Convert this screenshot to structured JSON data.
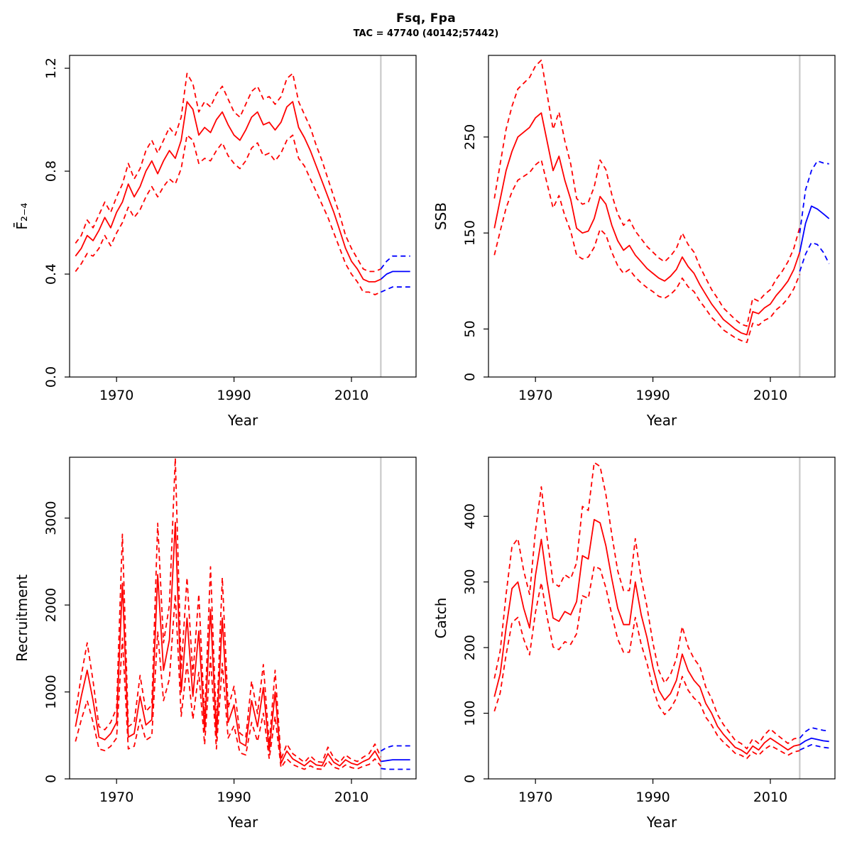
{
  "header": {
    "title": "Fsq, Fpa",
    "subtitle": "TAC = 47740 (40142;57442)"
  },
  "palette": {
    "history": "#ff0000",
    "forecast": "#0000ff",
    "vline": "#c9c9c9",
    "axis": "#000000"
  },
  "chart_data": [
    {
      "name": "fishing-mortality",
      "type": "line",
      "xlabel": "Year",
      "ylabel": "F̄₂₋₄",
      "xlim": [
        1962,
        2021
      ],
      "ylim": [
        0,
        1.25
      ],
      "xticks": [
        1970,
        1990,
        2010
      ],
      "yticks": [
        0,
        0.4,
        0.8,
        1.2
      ],
      "ytick_labels": [
        "0.0",
        "0.4",
        "0.8",
        "1.2"
      ],
      "vline": 2015,
      "years": [
        1963,
        1964,
        1965,
        1966,
        1967,
        1968,
        1969,
        1970,
        1971,
        1972,
        1973,
        1974,
        1975,
        1976,
        1977,
        1978,
        1979,
        1980,
        1981,
        1982,
        1983,
        1984,
        1985,
        1986,
        1987,
        1988,
        1989,
        1990,
        1991,
        1992,
        1993,
        1994,
        1995,
        1996,
        1997,
        1998,
        1999,
        2000,
        2001,
        2002,
        2003,
        2004,
        2005,
        2006,
        2007,
        2008,
        2009,
        2010,
        2011,
        2012,
        2013,
        2014,
        2015
      ],
      "median": [
        0.47,
        0.5,
        0.55,
        0.53,
        0.57,
        0.62,
        0.58,
        0.64,
        0.68,
        0.75,
        0.7,
        0.74,
        0.8,
        0.84,
        0.79,
        0.84,
        0.88,
        0.85,
        0.92,
        1.07,
        1.04,
        0.94,
        0.97,
        0.95,
        1.0,
        1.03,
        0.98,
        0.94,
        0.92,
        0.96,
        1.01,
        1.03,
        0.98,
        0.99,
        0.96,
        0.99,
        1.05,
        1.07,
        0.97,
        0.93,
        0.88,
        0.82,
        0.76,
        0.7,
        0.64,
        0.57,
        0.5,
        0.45,
        0.42,
        0.38,
        0.37,
        0.37,
        0.38
      ],
      "lower": [
        0.41,
        0.44,
        0.48,
        0.47,
        0.5,
        0.55,
        0.51,
        0.56,
        0.6,
        0.66,
        0.62,
        0.65,
        0.7,
        0.74,
        0.7,
        0.74,
        0.77,
        0.75,
        0.81,
        0.94,
        0.92,
        0.83,
        0.85,
        0.84,
        0.88,
        0.91,
        0.86,
        0.83,
        0.81,
        0.84,
        0.89,
        0.91,
        0.86,
        0.87,
        0.84,
        0.87,
        0.92,
        0.94,
        0.85,
        0.82,
        0.77,
        0.72,
        0.67,
        0.62,
        0.56,
        0.5,
        0.44,
        0.4,
        0.37,
        0.33,
        0.33,
        0.32,
        0.33
      ],
      "upper": [
        0.52,
        0.55,
        0.61,
        0.58,
        0.63,
        0.68,
        0.64,
        0.7,
        0.75,
        0.83,
        0.77,
        0.81,
        0.88,
        0.92,
        0.87,
        0.92,
        0.97,
        0.94,
        1.01,
        1.18,
        1.14,
        1.03,
        1.07,
        1.05,
        1.1,
        1.13,
        1.08,
        1.03,
        1.01,
        1.06,
        1.11,
        1.13,
        1.08,
        1.09,
        1.06,
        1.09,
        1.16,
        1.18,
        1.07,
        1.02,
        0.97,
        0.9,
        0.84,
        0.77,
        0.7,
        0.63,
        0.55,
        0.5,
        0.46,
        0.42,
        0.41,
        0.41,
        0.42
      ],
      "forecast": {
        "years": [
          2015,
          2016,
          2017,
          2018,
          2019,
          2020
        ],
        "median": [
          0.38,
          0.4,
          0.41,
          0.41,
          0.41,
          0.41
        ],
        "lower": [
          0.33,
          0.34,
          0.35,
          0.35,
          0.35,
          0.35
        ],
        "upper": [
          0.42,
          0.45,
          0.47,
          0.47,
          0.47,
          0.47
        ]
      }
    },
    {
      "name": "ssb",
      "type": "line",
      "xlabel": "Year",
      "ylabel": "SSB",
      "xlim": [
        1962,
        2021
      ],
      "ylim": [
        0,
        335
      ],
      "xticks": [
        1970,
        1990,
        2010
      ],
      "yticks": [
        0,
        50,
        150,
        250
      ],
      "ytick_labels": [
        "0",
        "50",
        "150",
        "250"
      ],
      "vline": 2015,
      "years": [
        1963,
        1964,
        1965,
        1966,
        1967,
        1968,
        1969,
        1970,
        1971,
        1972,
        1973,
        1974,
        1975,
        1976,
        1977,
        1978,
        1979,
        1980,
        1981,
        1982,
        1983,
        1984,
        1985,
        1986,
        1987,
        1988,
        1989,
        1990,
        1991,
        1992,
        1993,
        1994,
        1995,
        1996,
        1997,
        1998,
        1999,
        2000,
        2001,
        2002,
        2003,
        2004,
        2005,
        2006,
        2007,
        2008,
        2009,
        2010,
        2011,
        2012,
        2013,
        2014,
        2015
      ],
      "median": [
        155,
        185,
        215,
        235,
        250,
        255,
        260,
        270,
        275,
        245,
        215,
        230,
        205,
        185,
        155,
        150,
        152,
        165,
        188,
        180,
        158,
        142,
        132,
        137,
        127,
        120,
        113,
        108,
        103,
        100,
        105,
        112,
        125,
        115,
        108,
        96,
        86,
        76,
        68,
        60,
        55,
        50,
        46,
        44,
        68,
        66,
        72,
        76,
        85,
        92,
        100,
        112,
        130
      ],
      "lower": [
        127,
        152,
        176,
        193,
        205,
        209,
        213,
        221,
        226,
        201,
        176,
        189,
        168,
        152,
        127,
        123,
        125,
        135,
        154,
        148,
        130,
        116,
        108,
        112,
        104,
        98,
        93,
        89,
        84,
        82,
        86,
        92,
        103,
        94,
        89,
        79,
        71,
        62,
        56,
        49,
        45,
        41,
        38,
        36,
        56,
        54,
        59,
        62,
        70,
        75,
        82,
        92,
        107
      ],
      "upper": [
        186,
        222,
        258,
        282,
        300,
        306,
        312,
        324,
        330,
        294,
        258,
        276,
        246,
        222,
        186,
        180,
        182,
        198,
        226,
        216,
        190,
        170,
        158,
        164,
        152,
        144,
        136,
        130,
        124,
        120,
        126,
        134,
        150,
        138,
        130,
        115,
        103,
        91,
        82,
        72,
        66,
        60,
        55,
        53,
        82,
        79,
        86,
        91,
        102,
        110,
        120,
        134,
        156
      ],
      "forecast": {
        "years": [
          2015,
          2016,
          2017,
          2018,
          2019,
          2020
        ],
        "median": [
          130,
          160,
          178,
          175,
          170,
          165
        ],
        "lower": [
          110,
          128,
          140,
          138,
          130,
          118
        ],
        "upper": [
          150,
          195,
          215,
          225,
          223,
          222
        ]
      }
    },
    {
      "name": "recruitment",
      "type": "line",
      "xlabel": "Year",
      "ylabel": "Recruitment",
      "xlim": [
        1962,
        2021
      ],
      "ylim": [
        0,
        3700
      ],
      "xticks": [
        1970,
        1990,
        2010
      ],
      "yticks": [
        0,
        1000,
        2000,
        3000
      ],
      "ytick_labels": [
        "0",
        "1000",
        "2000",
        "3000"
      ],
      "vline": 2015,
      "years": [
        1963,
        1964,
        1965,
        1966,
        1967,
        1968,
        1969,
        1970,
        1971,
        1972,
        1973,
        1974,
        1975,
        1976,
        1977,
        1978,
        1979,
        1980,
        1981,
        1982,
        1983,
        1984,
        1985,
        1986,
        1987,
        1988,
        1989,
        1990,
        1991,
        1992,
        1993,
        1994,
        1995,
        1996,
        1997,
        1998,
        1999,
        2000,
        2001,
        2002,
        2003,
        2004,
        2005,
        2006,
        2007,
        2008,
        2009,
        2010,
        2011,
        2012,
        2013,
        2014,
        2015
      ],
      "median": [
        600,
        950,
        1250,
        900,
        480,
        450,
        520,
        650,
        2250,
        480,
        520,
        950,
        620,
        680,
        2350,
        1250,
        1600,
        2950,
        1000,
        1850,
        950,
        1700,
        550,
        1950,
        480,
        1850,
        650,
        850,
        420,
        380,
        900,
        600,
        1050,
        320,
        1000,
        180,
        320,
        230,
        190,
        150,
        210,
        160,
        150,
        290,
        190,
        150,
        220,
        180,
        160,
        200,
        230,
        320,
        200
      ],
      "lower": [
        430,
        680,
        900,
        650,
        345,
        325,
        375,
        470,
        1620,
        345,
        375,
        685,
        445,
        490,
        1690,
        900,
        1150,
        2125,
        720,
        1330,
        685,
        1225,
        395,
        1405,
        345,
        1330,
        470,
        610,
        300,
        275,
        650,
        430,
        755,
        230,
        720,
        130,
        230,
        165,
        135,
        110,
        150,
        115,
        110,
        210,
        135,
        110,
        160,
        130,
        115,
        145,
        165,
        230,
        145
      ],
      "upper": [
        750,
        1190,
        1565,
        1125,
        600,
        565,
        650,
        815,
        2815,
        600,
        650,
        1190,
        775,
        850,
        2940,
        1565,
        2000,
        3690,
        1250,
        2315,
        1190,
        2125,
        690,
        2440,
        600,
        2315,
        815,
        1065,
        525,
        475,
        1125,
        750,
        1315,
        400,
        1250,
        225,
        400,
        290,
        240,
        190,
        265,
        200,
        190,
        365,
        240,
        190,
        275,
        225,
        200,
        250,
        290,
        400,
        250
      ],
      "forecast": {
        "years": [
          2015,
          2016,
          2017,
          2018,
          2019,
          2020
        ],
        "median": [
          200,
          210,
          220,
          220,
          220,
          220
        ],
        "lower": [
          120,
          110,
          110,
          110,
          110,
          110
        ],
        "upper": [
          320,
          360,
          380,
          380,
          380,
          380
        ]
      }
    },
    {
      "name": "catch",
      "type": "line",
      "xlabel": "Year",
      "ylabel": "Catch",
      "xlim": [
        1962,
        2021
      ],
      "ylim": [
        0,
        490
      ],
      "xticks": [
        1970,
        1990,
        2010
      ],
      "yticks": [
        0,
        100,
        200,
        300,
        400
      ],
      "ytick_labels": [
        "0",
        "100",
        "200",
        "300",
        "400"
      ],
      "vline": 2015,
      "years": [
        1963,
        1964,
        1965,
        1966,
        1967,
        1968,
        1969,
        1970,
        1971,
        1972,
        1973,
        1974,
        1975,
        1976,
        1977,
        1978,
        1979,
        1980,
        1981,
        1982,
        1983,
        1984,
        1985,
        1986,
        1987,
        1988,
        1989,
        1990,
        1991,
        1992,
        1993,
        1994,
        1995,
        1996,
        1997,
        1998,
        1999,
        2000,
        2001,
        2002,
        2003,
        2004,
        2005,
        2006,
        2007,
        2008,
        2009,
        2010,
        2011,
        2012,
        2013,
        2014,
        2015
      ],
      "median": [
        125,
        160,
        230,
        290,
        300,
        260,
        230,
        310,
        365,
        300,
        245,
        240,
        255,
        250,
        270,
        340,
        335,
        395,
        390,
        355,
        305,
        260,
        235,
        235,
        300,
        250,
        215,
        170,
        135,
        120,
        130,
        150,
        190,
        165,
        150,
        140,
        115,
        100,
        80,
        68,
        58,
        48,
        44,
        38,
        50,
        44,
        55,
        62,
        56,
        50,
        44,
        50,
        52
      ],
      "lower": [
        103,
        131,
        189,
        238,
        246,
        213,
        189,
        254,
        299,
        246,
        201,
        197,
        209,
        205,
        221,
        279,
        275,
        324,
        320,
        291,
        250,
        213,
        193,
        193,
        246,
        205,
        176,
        139,
        111,
        98,
        107,
        123,
        156,
        135,
        123,
        115,
        94,
        82,
        66,
        56,
        48,
        39,
        36,
        31,
        41,
        36,
        45,
        51,
        46,
        41,
        36,
        41,
        43
      ],
      "upper": [
        153,
        195,
        281,
        354,
        366,
        317,
        281,
        378,
        445,
        366,
        299,
        293,
        311,
        305,
        329,
        415,
        409,
        482,
        476,
        433,
        372,
        317,
        287,
        287,
        366,
        305,
        262,
        207,
        165,
        146,
        159,
        183,
        232,
        201,
        183,
        171,
        140,
        122,
        98,
        83,
        71,
        59,
        54,
        46,
        61,
        54,
        67,
        76,
        68,
        61,
        54,
        61,
        63
      ],
      "forecast": {
        "years": [
          2015,
          2016,
          2017,
          2018,
          2019,
          2020
        ],
        "median": [
          52,
          58,
          62,
          60,
          58,
          57
        ],
        "lower": [
          44,
          48,
          52,
          50,
          48,
          47
        ],
        "upper": [
          62,
          72,
          78,
          76,
          74,
          73
        ]
      }
    }
  ]
}
